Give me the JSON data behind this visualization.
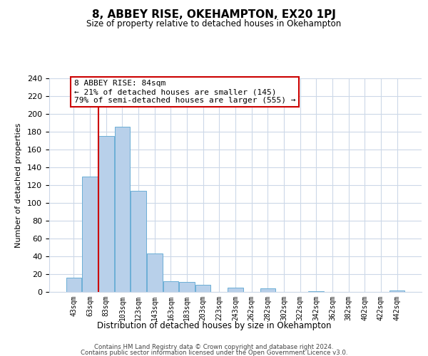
{
  "title": "8, ABBEY RISE, OKEHAMPTON, EX20 1PJ",
  "subtitle": "Size of property relative to detached houses in Okehampton",
  "xlabel": "Distribution of detached houses by size in Okehampton",
  "ylabel": "Number of detached properties",
  "bar_labels": [
    "43sqm",
    "63sqm",
    "83sqm",
    "103sqm",
    "123sqm",
    "143sqm",
    "163sqm",
    "183sqm",
    "203sqm",
    "223sqm",
    "243sqm",
    "262sqm",
    "282sqm",
    "302sqm",
    "322sqm",
    "342sqm",
    "362sqm",
    "382sqm",
    "402sqm",
    "422sqm",
    "442sqm"
  ],
  "bar_values": [
    16,
    130,
    175,
    186,
    114,
    43,
    12,
    11,
    8,
    0,
    5,
    0,
    4,
    0,
    0,
    1,
    0,
    0,
    0,
    0,
    2
  ],
  "bar_color": "#b8d0ea",
  "bar_edge_color": "#6baed6",
  "vline_color": "#cc0000",
  "annotation_title": "8 ABBEY RISE: 84sqm",
  "annotation_line1": "← 21% of detached houses are smaller (145)",
  "annotation_line2": "79% of semi-detached houses are larger (555) →",
  "annotation_box_color": "#ffffff",
  "annotation_box_edge": "#cc0000",
  "ylim": [
    0,
    240
  ],
  "yticks": [
    0,
    20,
    40,
    60,
    80,
    100,
    120,
    140,
    160,
    180,
    200,
    220,
    240
  ],
  "footer1": "Contains HM Land Registry data © Crown copyright and database right 2024.",
  "footer2": "Contains public sector information licensed under the Open Government Licence v3.0.",
  "background_color": "#ffffff",
  "grid_color": "#ccd8e8"
}
